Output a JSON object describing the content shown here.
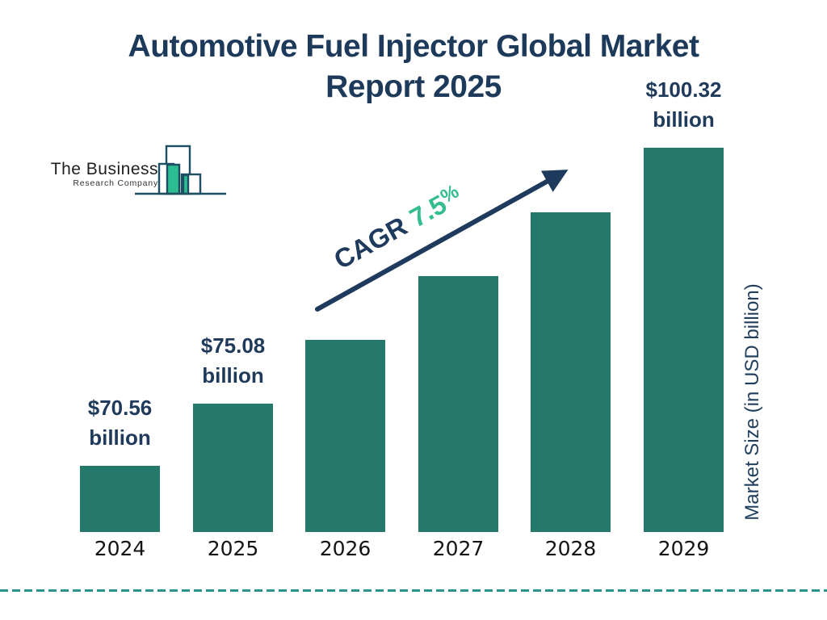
{
  "header": {
    "title_line1": "Automotive Fuel Injector Global Market",
    "title_line2": "Report 2025"
  },
  "logo": {
    "line1": "The Business",
    "line2": "Research Company"
  },
  "cagr": {
    "label": "CAGR",
    "value": "7.5",
    "percent_sign": "%"
  },
  "axis": {
    "y_title": "Market Size (in USD billion)"
  },
  "colors": {
    "title_navy": "#1e3a5a",
    "bar_teal": "#25796a",
    "accent_green": "#34bd8e",
    "logo_green": "#2dbd92",
    "logo_outline": "#1d4f63",
    "arrow_navy": "#1e3a5c",
    "dash_teal": "#2b948e",
    "year_text": "#141414"
  },
  "chart_data": {
    "type": "bar",
    "title": "Automotive Fuel Injector Global Market Report 2025",
    "categories": [
      "2024",
      "2025",
      "2026",
      "2027",
      "2028",
      "2029"
    ],
    "values_usd_billion": [
      70.56,
      75.08,
      null,
      null,
      null,
      100.32
    ],
    "bar_labels": [
      {
        "line1": "$70.56",
        "line2": "billion"
      },
      {
        "line1": "$75.08",
        "line2": "billion"
      },
      null,
      null,
      null,
      {
        "line1": "$100.32",
        "line2": "billion"
      }
    ],
    "height_fractions": [
      0.172,
      0.334,
      0.5,
      0.666,
      0.832,
      1.0
    ],
    "cagr_percent": 7.5,
    "xlabel": "",
    "ylabel": "Market Size (in USD billion)",
    "legend": false,
    "gridlines": false,
    "y_axis_ticks": "none (values shown as labels above bars)"
  }
}
